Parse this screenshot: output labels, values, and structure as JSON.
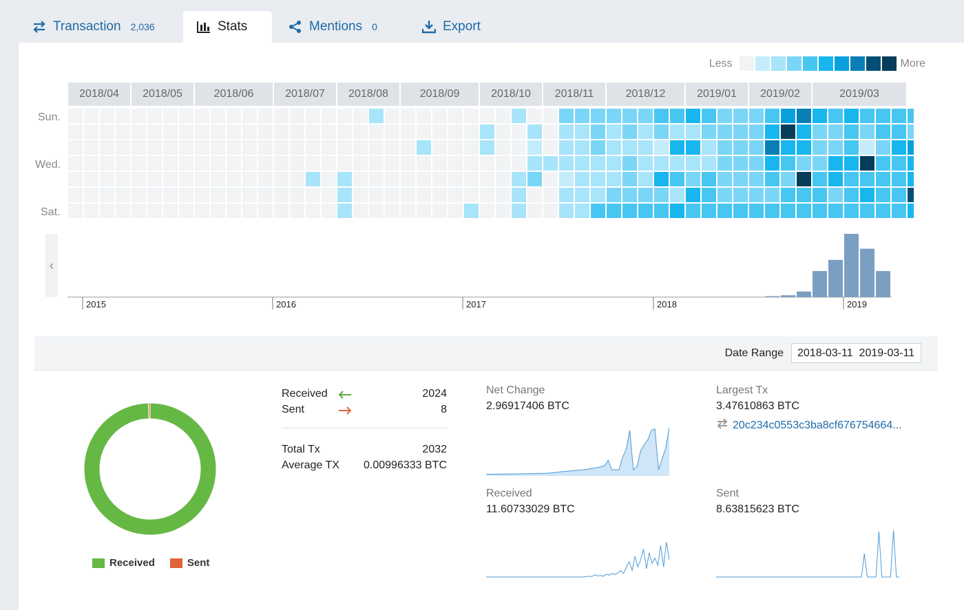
{
  "tabs": [
    {
      "label": "Transaction",
      "count": "2,036",
      "icon": "transfer-icon",
      "active": false
    },
    {
      "label": "Stats",
      "count": "",
      "icon": "bar-chart-icon",
      "active": true
    },
    {
      "label": "Mentions",
      "count": "0",
      "icon": "share-icon",
      "active": false
    },
    {
      "label": "Export",
      "count": "",
      "icon": "download-icon",
      "active": false
    }
  ],
  "heatmap": {
    "legend_less": "Less",
    "legend_more": "More",
    "scale_colors": [
      "#f1f3f5",
      "#c5ecfb",
      "#a8e4fa",
      "#7ad6f6",
      "#48c6f2",
      "#18b6ee",
      "#0aa0dd",
      "#0a7fb6",
      "#064f74",
      "#053d5a"
    ],
    "months": [
      "2018/04",
      "2018/05",
      "2018/06",
      "2018/07",
      "2018/08",
      "2018/09",
      "2018/10",
      "2018/11",
      "2018/12",
      "2019/01",
      "2019/02",
      "2019/03"
    ],
    "day_labels": [
      "Sun.",
      "Wed.",
      "Sat."
    ],
    "week_levels": [
      [
        0,
        0,
        0,
        0,
        0,
        0,
        0
      ],
      [
        0,
        0,
        0,
        0,
        0,
        0,
        0
      ],
      [
        0,
        0,
        0,
        0,
        0,
        0,
        0
      ],
      [
        0,
        0,
        0,
        0,
        0,
        0,
        0
      ],
      [
        0,
        0,
        0,
        0,
        0,
        0,
        0
      ],
      [
        0,
        0,
        0,
        0,
        0,
        0,
        0
      ],
      [
        0,
        0,
        0,
        0,
        0,
        0,
        0
      ],
      [
        0,
        0,
        0,
        0,
        0,
        0,
        0
      ],
      [
        0,
        0,
        0,
        0,
        0,
        0,
        0
      ],
      [
        0,
        0,
        0,
        0,
        0,
        0,
        0
      ],
      [
        0,
        0,
        0,
        0,
        0,
        0,
        0
      ],
      [
        0,
        0,
        0,
        0,
        0,
        0,
        0
      ],
      [
        0,
        0,
        0,
        0,
        0,
        0,
        0
      ],
      [
        0,
        0,
        0,
        0,
        0,
        0,
        0
      ],
      [
        0,
        0,
        0,
        0,
        0,
        0,
        0
      ],
      [
        0,
        0,
        0,
        0,
        2,
        0,
        0
      ],
      [
        0,
        0,
        0,
        0,
        0,
        0,
        0
      ],
      [
        0,
        0,
        0,
        0,
        2,
        2,
        2
      ],
      [
        0,
        0,
        0,
        0,
        0,
        0,
        0
      ],
      [
        2,
        0,
        0,
        0,
        0,
        0,
        0
      ],
      [
        0,
        0,
        0,
        0,
        0,
        0,
        0
      ],
      [
        0,
        0,
        0,
        0,
        0,
        0,
        0
      ],
      [
        0,
        0,
        2,
        0,
        0,
        0,
        0
      ],
      [
        0,
        0,
        0,
        0,
        0,
        0,
        0
      ],
      [
        0,
        0,
        0,
        0,
        0,
        0,
        0
      ],
      [
        0,
        0,
        0,
        0,
        0,
        0,
        2
      ],
      [
        0,
        2,
        2,
        0,
        0,
        0,
        0
      ],
      [
        0,
        0,
        0,
        0,
        0,
        0,
        0
      ],
      [
        2,
        0,
        0,
        0,
        2,
        2,
        2
      ],
      [
        0,
        2,
        1,
        2,
        3,
        0,
        0
      ],
      [
        0,
        0,
        0,
        2,
        0,
        0,
        0
      ],
      [
        3,
        2,
        2,
        2,
        1,
        2,
        2
      ],
      [
        3,
        2,
        2,
        2,
        2,
        2,
        2
      ],
      [
        3,
        3,
        3,
        2,
        2,
        2,
        4
      ],
      [
        3,
        2,
        2,
        2,
        2,
        3,
        4
      ],
      [
        3,
        3,
        2,
        3,
        3,
        3,
        4
      ],
      [
        3,
        2,
        2,
        2,
        2,
        3,
        4
      ],
      [
        4,
        3,
        1,
        2,
        5,
        3,
        4
      ],
      [
        4,
        2,
        5,
        2,
        4,
        2,
        5
      ],
      [
        5,
        2,
        5,
        2,
        3,
        5,
        4
      ],
      [
        4,
        3,
        2,
        2,
        4,
        4,
        4
      ],
      [
        3,
        3,
        3,
        3,
        3,
        3,
        4
      ],
      [
        3,
        3,
        3,
        3,
        3,
        3,
        4
      ],
      [
        3,
        3,
        3,
        3,
        3,
        3,
        4
      ],
      [
        4,
        5,
        7,
        5,
        4,
        3,
        4
      ],
      [
        6,
        9,
        5,
        4,
        3,
        4,
        4
      ],
      [
        7,
        5,
        5,
        3,
        9,
        4,
        4
      ],
      [
        5,
        3,
        3,
        3,
        4,
        4,
        4
      ],
      [
        4,
        3,
        3,
        5,
        5,
        3,
        4
      ],
      [
        5,
        4,
        4,
        5,
        4,
        4,
        4
      ],
      [
        4,
        3,
        1,
        9,
        4,
        5,
        4
      ],
      [
        4,
        4,
        3,
        4,
        4,
        4,
        4
      ],
      [
        4,
        4,
        5,
        4,
        4,
        4,
        4
      ],
      [
        4,
        3,
        6,
        5,
        5,
        8,
        5
      ],
      [
        2,
        5,
        2,
        0,
        0,
        0,
        0
      ]
    ]
  },
  "timeline": {
    "nav_left": "‹",
    "year_labels": [
      "2015",
      "2016",
      "2017",
      "2018",
      "2019"
    ],
    "bar_values": [
      1,
      2,
      6,
      28,
      40,
      68,
      52,
      28
    ],
    "bar_color": "#7b9fc3"
  },
  "date_range": {
    "label": "Date Range",
    "value": "2018-03-11  2019-03-11"
  },
  "chart_data": [
    {
      "type": "pie",
      "categories": [
        "Received",
        "Sent"
      ],
      "values": [
        2024,
        8
      ],
      "colors": [
        "#65b844",
        "#e0643a"
      ],
      "donut": true
    },
    {
      "type": "area",
      "title": "Net Change",
      "values": [
        0.02,
        0.02,
        0.02,
        0.02,
        0.03,
        0.03,
        0.03,
        0.03,
        0.04,
        0.04,
        0.05,
        0.05,
        0.06,
        0.06,
        0.07,
        0.07,
        0.08,
        0.08,
        0.1,
        0.12,
        0.15,
        0.18,
        0.2,
        0.22,
        0.24,
        0.26,
        0.28,
        0.3,
        0.33,
        0.36,
        0.4,
        0.45,
        0.5,
        0.55,
        0.9,
        0.3,
        0.3,
        0.3,
        1.1,
        1.6,
        2.8,
        0.3,
        0.5,
        1.5,
        1.9,
        2.2,
        2.8,
        2.9,
        0.3,
        1.0,
        1.7,
        2.97
      ]
    },
    {
      "type": "line",
      "title": "Received",
      "values": [
        0.02,
        0.02,
        0.02,
        0.02,
        0.02,
        0.02,
        0.02,
        0.02,
        0.02,
        0.02,
        0.02,
        0.02,
        0.02,
        0.02,
        0.02,
        0.02,
        0.02,
        0.02,
        0.02,
        0.02,
        0.02,
        0.02,
        0.02,
        0.02,
        0.02,
        0.02,
        0.02,
        0.02,
        0.02,
        0.02,
        0.02,
        0.02,
        0.02,
        0.02,
        0.02,
        0.03,
        0.04,
        0.03,
        0.08,
        0.05,
        0.06,
        0.04,
        0.1,
        0.07,
        0.12,
        0.09,
        0.13,
        0.2,
        0.12,
        0.3,
        0.45,
        0.2,
        0.6,
        0.3,
        0.5,
        0.8,
        0.25,
        0.7,
        0.4,
        0.55,
        0.35,
        0.9,
        0.3,
        1.0,
        0.5
      ]
    },
    {
      "type": "line",
      "title": "Sent",
      "values": [
        0,
        0,
        0,
        0,
        0,
        0,
        0,
        0,
        0,
        0,
        0,
        0,
        0,
        0,
        0,
        0,
        0,
        0,
        0,
        0,
        0,
        0,
        0,
        0,
        0,
        0,
        0,
        0,
        0,
        0,
        0,
        0,
        0,
        0,
        0,
        0,
        0,
        0,
        0,
        0,
        0,
        0,
        0,
        0,
        0,
        0,
        0,
        0,
        0,
        0,
        0,
        0.5,
        0,
        0,
        0,
        0,
        0.97,
        0,
        0,
        0,
        0,
        1.0,
        0,
        0
      ]
    }
  ],
  "summary": {
    "received_label": "Received",
    "received_value": "2024",
    "sent_label": "Sent",
    "sent_value": "8",
    "total_label": "Total Tx",
    "total_value": "2032",
    "average_label": "Average TX",
    "average_value": "0.00996333 BTC"
  },
  "metrics": {
    "net_change_label": "Net Change",
    "net_change_value": "2.96917406 BTC",
    "largest_label": "Largest Tx",
    "largest_value": "3.47610863 BTC",
    "largest_hash": "20c234c0553c3ba8cf676754664...",
    "received_label": "Received",
    "received_value": "11.60733029 BTC",
    "sent_label": "Sent",
    "sent_value": "8.63815623 BTC"
  },
  "donut_legend": {
    "received": "Received",
    "sent": "Sent"
  }
}
